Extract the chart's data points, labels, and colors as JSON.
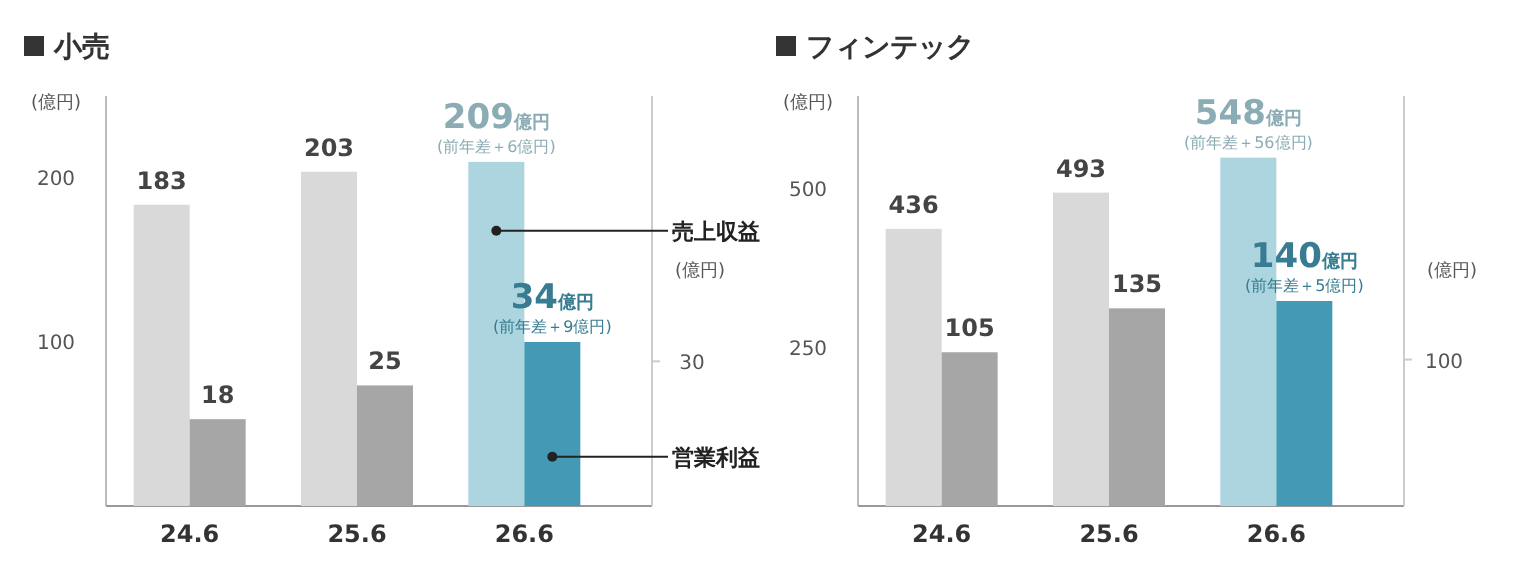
{
  "chart_data": [
    {
      "type": "bar",
      "title": "小売",
      "categories": [
        "24.6",
        "25.6",
        "26.6"
      ],
      "ylabel": "(億円)",
      "y2label": "(億円)",
      "ylim": [
        0,
        249
      ],
      "yticks": [
        100,
        200
      ],
      "y2lim": [
        0,
        85
      ],
      "y2ticks": [
        30
      ],
      "series": [
        {
          "name": "売上収益",
          "colors": [
            "#d9d9d9",
            "#d9d9d9",
            "#acd5df"
          ],
          "values": [
            183,
            203,
            209
          ],
          "value_labels": [
            "183",
            "203",
            "209億円"
          ]
        },
        {
          "name": "営業利益",
          "axis": "y2",
          "colors": [
            "#a6a6a6",
            "#a6a6a6",
            "#4499b5"
          ],
          "values": [
            18,
            25,
            34
          ],
          "value_labels": [
            "18",
            "25",
            "34億円"
          ]
        }
      ],
      "annotations": [
        {
          "text": "(前年差＋6億円)",
          "x": "26.6",
          "y": 209
        },
        "(前年差＋9億円)"
      ]
    },
    {
      "type": "bar",
      "title": "フィンテック",
      "categories": [
        "24.6",
        "25.6",
        "26.6"
      ],
      "ylabel": "(億円)",
      "y2label": "(億円)",
      "ylim": [
        0,
        645
      ],
      "yticks": [
        250,
        500
      ],
      "y2lim": [
        0,
        280
      ],
      "y2ticks": [
        100
      ],
      "series": [
        {
          "colors": [
            "#d9d9d9",
            "#d9d9d9",
            "#acd5df"
          ],
          "values": [
            436,
            493,
            548
          ],
          "value_labels": [
            "436",
            "493",
            "548億円"
          ]
        },
        {
          "axis": "y2",
          "colors": [
            "#a6a6a6",
            "#a6a6a6",
            "#4499b5"
          ],
          "values": [
            105,
            135,
            140
          ],
          "value_labels": [
            "105",
            "135",
            "140億円"
          ]
        }
      ],
      "annotations": [
        {
          "text": "(前年差＋56億円)",
          "x": "26.6",
          "y": 548
        },
        "(前年差＋5億円)"
      ]
    }
  ]
}
